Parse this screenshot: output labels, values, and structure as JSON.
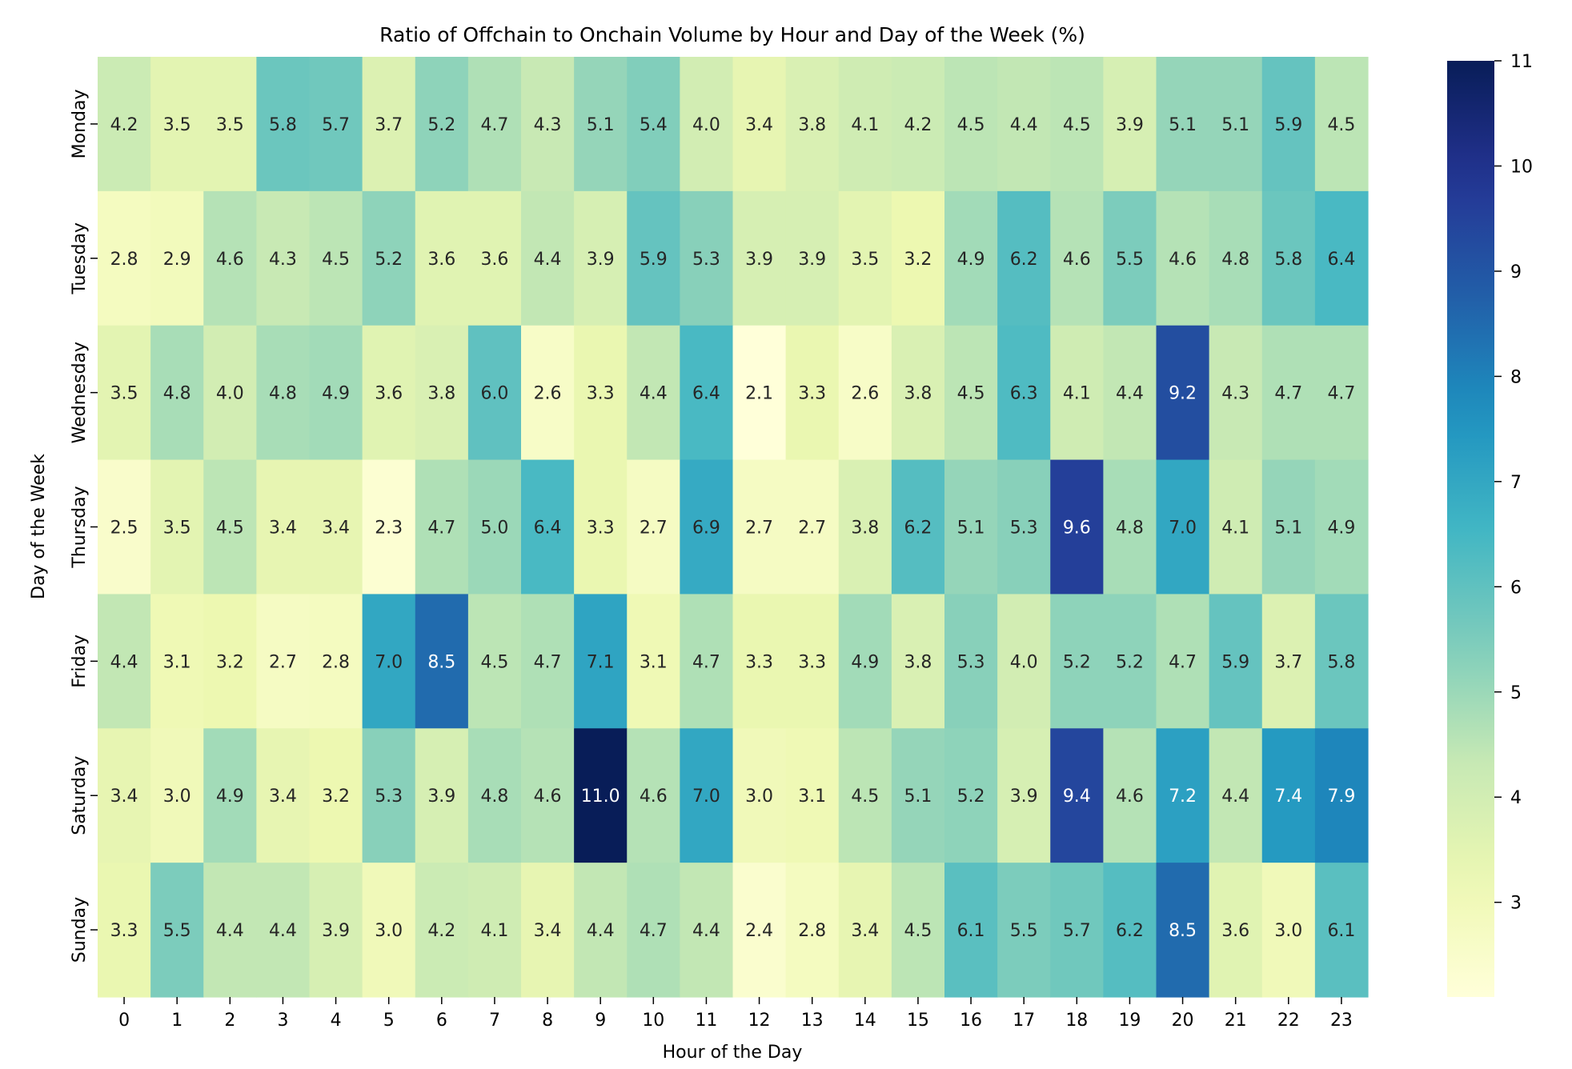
{
  "chart_data": {
    "type": "heatmap",
    "title": "Ratio of Offchain to Onchain Volume by Hour and Day of the Week (%)",
    "xlabel": "Hour of the Day",
    "ylabel": "Day of the Week",
    "x": [
      "0",
      "1",
      "2",
      "3",
      "4",
      "5",
      "6",
      "7",
      "8",
      "9",
      "10",
      "11",
      "12",
      "13",
      "14",
      "15",
      "16",
      "17",
      "18",
      "19",
      "20",
      "21",
      "22",
      "23"
    ],
    "y": [
      "Monday",
      "Tuesday",
      "Wednesday",
      "Thursday",
      "Friday",
      "Saturday",
      "Sunday"
    ],
    "values": [
      [
        4.2,
        3.5,
        3.5,
        5.8,
        5.7,
        3.7,
        5.2,
        4.7,
        4.3,
        5.1,
        5.4,
        4.0,
        3.4,
        3.8,
        4.1,
        4.2,
        4.5,
        4.4,
        4.5,
        3.9,
        5.1,
        5.1,
        5.9,
        4.5
      ],
      [
        2.8,
        2.9,
        4.6,
        4.3,
        4.5,
        5.2,
        3.6,
        3.6,
        4.4,
        3.9,
        5.9,
        5.3,
        3.9,
        3.9,
        3.5,
        3.2,
        4.9,
        6.2,
        4.6,
        5.5,
        4.6,
        4.8,
        5.8,
        6.4
      ],
      [
        3.5,
        4.8,
        4.0,
        4.8,
        4.9,
        3.6,
        3.8,
        6.0,
        2.6,
        3.3,
        4.4,
        6.4,
        2.1,
        3.3,
        2.6,
        3.8,
        4.5,
        6.3,
        4.1,
        4.4,
        9.2,
        4.3,
        4.7,
        4.7
      ],
      [
        2.5,
        3.5,
        4.5,
        3.4,
        3.4,
        2.3,
        4.7,
        5.0,
        6.4,
        3.3,
        2.7,
        6.9,
        2.7,
        2.7,
        3.8,
        6.2,
        5.1,
        5.3,
        9.6,
        4.8,
        7.0,
        4.1,
        5.1,
        4.9
      ],
      [
        4.4,
        3.1,
        3.2,
        2.7,
        2.8,
        7.0,
        8.5,
        4.5,
        4.7,
        7.1,
        3.1,
        4.7,
        3.3,
        3.3,
        4.9,
        3.8,
        5.3,
        4.0,
        5.2,
        5.2,
        4.7,
        5.9,
        3.7,
        5.8
      ],
      [
        3.4,
        3.0,
        4.9,
        3.4,
        3.2,
        5.3,
        3.9,
        4.8,
        4.6,
        11.0,
        4.6,
        7.0,
        3.0,
        3.1,
        4.5,
        5.1,
        5.2,
        3.9,
        9.4,
        4.6,
        7.2,
        4.4,
        7.4,
        7.9
      ],
      [
        3.3,
        5.5,
        4.4,
        4.4,
        3.9,
        3.0,
        4.2,
        4.1,
        3.4,
        4.4,
        4.7,
        4.4,
        2.4,
        2.8,
        3.4,
        4.5,
        6.1,
        5.5,
        5.7,
        6.2,
        8.5,
        3.6,
        3.0,
        6.1
      ]
    ],
    "colormap": "YlGnBu",
    "vmin": 2.1,
    "vmax": 11.0,
    "colorbar_ticks": [
      "3",
      "4",
      "5",
      "6",
      "7",
      "8",
      "9",
      "10",
      "11"
    ],
    "annotations": true,
    "grid": false
  }
}
